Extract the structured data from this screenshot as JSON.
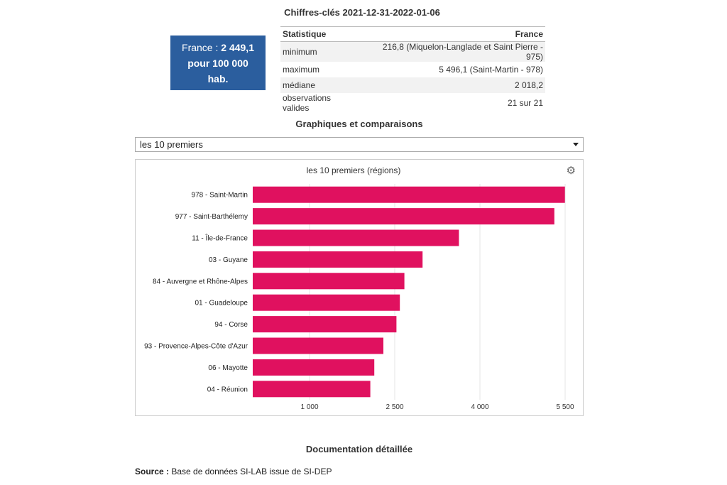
{
  "key_figures": {
    "title": "Chiffres-clés 2021-12-31-2022-01-06",
    "kpi": {
      "prefix": "France : ",
      "value": "2 449,1",
      "unit": "pour 100 000 hab."
    },
    "table": {
      "headers": [
        "Statistique",
        "France"
      ],
      "rows": [
        [
          "minimum",
          "216,8 (Miquelon-Langlade et Saint Pierre - 975)"
        ],
        [
          "maximum",
          "5 496,1 (Saint-Martin - 978)"
        ],
        [
          "médiane",
          "2 018,2"
        ],
        [
          "observations valides",
          "21 sur 21"
        ]
      ]
    }
  },
  "comparisons": {
    "title": "Graphiques et comparaisons",
    "select_value": "les 10 premiers"
  },
  "chart_data": {
    "type": "bar",
    "orientation": "horizontal",
    "title": "les 10 premiers (régions)",
    "categories": [
      "978 - Saint-Martin",
      "977 - Saint-Barthélemy",
      "11 - Île-de-France",
      "03 - Guyane",
      "84 - Auvergne et Rhône-Alpes",
      "01 - Guadeloupe",
      "94 - Corse",
      "93 - Provence-Alpes-Côte d'Azur",
      "06 - Mayotte",
      "04 - Réunion"
    ],
    "values": [
      5496.1,
      5310,
      3630,
      2990,
      2670,
      2590,
      2530,
      2300,
      2140,
      2070
    ],
    "xlim": [
      0,
      5500
    ],
    "xticks": [
      1000,
      2500,
      4000,
      5500
    ],
    "xtick_labels": [
      "1 000",
      "2 500",
      "4 000",
      "5 500"
    ],
    "grid": true,
    "bar_color": "#e0115f",
    "xlabel": "",
    "ylabel": ""
  },
  "documentation": {
    "title": "Documentation détaillée"
  },
  "source": {
    "label": "Source :",
    "text": " Base de données SI-LAB issue de SI-DEP"
  },
  "icons": {
    "settings": "gear-icon",
    "dropdown": "chevron-down-icon"
  }
}
